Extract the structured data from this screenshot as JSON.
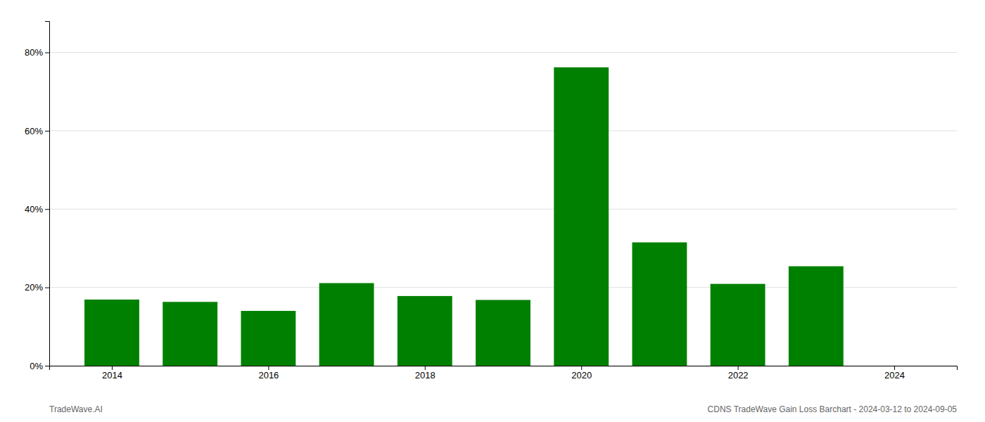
{
  "chart_data": {
    "type": "bar",
    "x": [
      2014,
      2015,
      2016,
      2017,
      2018,
      2019,
      2020,
      2021,
      2022,
      2023
    ],
    "values": [
      0.169,
      0.163,
      0.14,
      0.211,
      0.178,
      0.168,
      0.762,
      0.315,
      0.209,
      0.254
    ],
    "color": "#008000",
    "xlim": [
      2013.2,
      2024.8
    ],
    "xticks": [
      2014,
      2016,
      2018,
      2020,
      2022,
      2024
    ],
    "ylim": [
      0,
      0.88
    ],
    "yticks": [
      {
        "value": 0.0,
        "label": "0%"
      },
      {
        "value": 0.2,
        "label": "20%"
      },
      {
        "value": 0.4,
        "label": "40%"
      },
      {
        "value": 0.6,
        "label": "60%"
      },
      {
        "value": 0.8,
        "label": "80%"
      }
    ],
    "grid": true,
    "annotations": [
      "TradeWave.AI",
      "CDNS TradeWave Gain Loss Barchart - 2024-03-12 to 2024-09-05"
    ]
  }
}
